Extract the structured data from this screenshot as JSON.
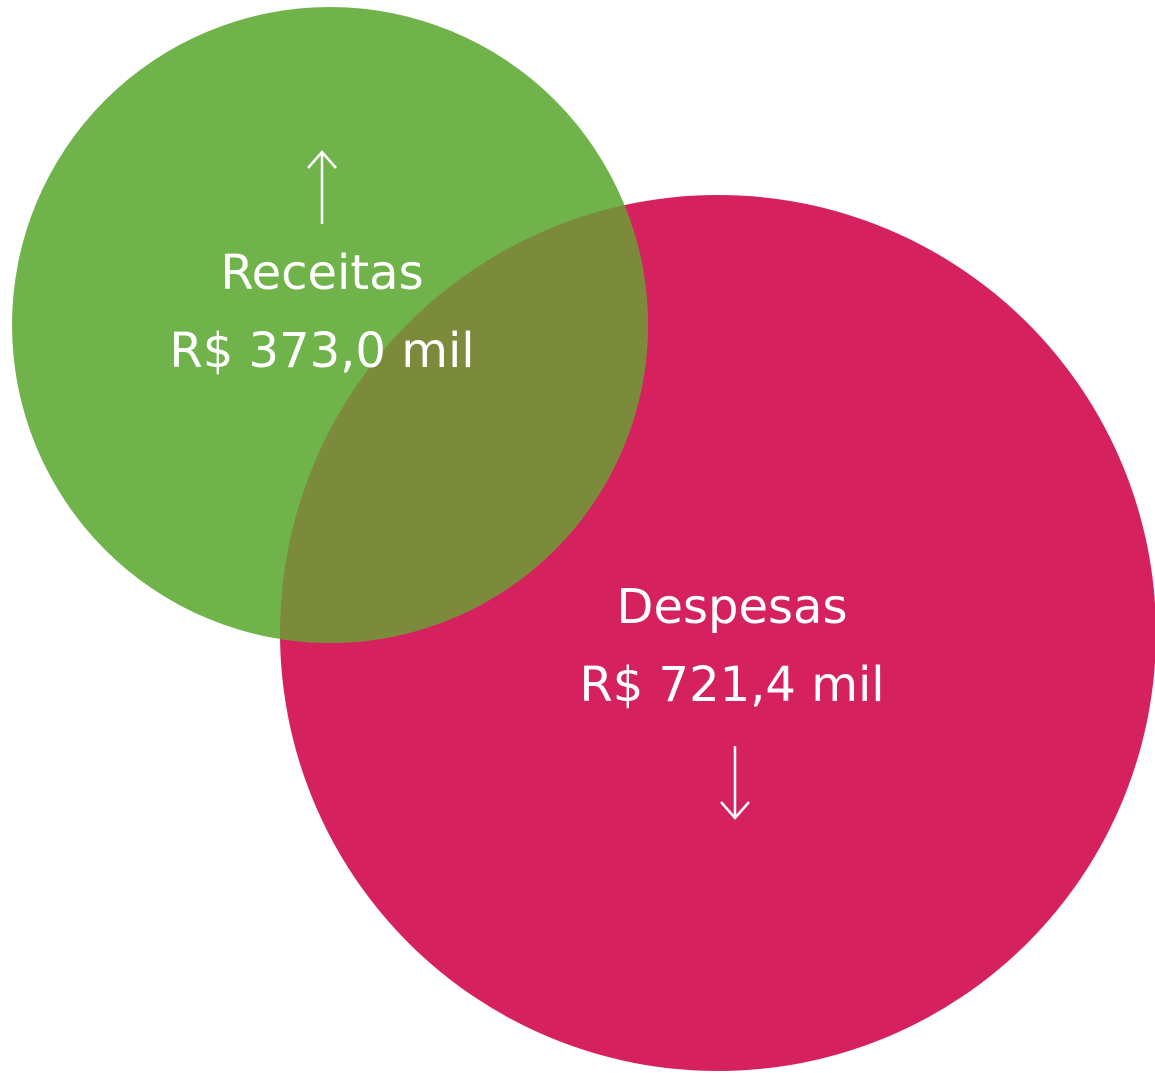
{
  "items": [
    {
      "label": "Receitas",
      "amount": "R$ 373,0 mil"
    },
    {
      "label": "Despesas",
      "amount": "R$ 721,4 mil"
    }
  ]
}
